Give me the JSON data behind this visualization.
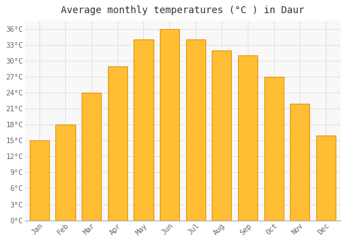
{
  "title": "Average monthly temperatures (°C ) in Daur",
  "months": [
    "Jan",
    "Feb",
    "Mar",
    "Apr",
    "May",
    "Jun",
    "Jul",
    "Aug",
    "Sep",
    "Oct",
    "Nov",
    "Dec"
  ],
  "values": [
    15,
    18,
    24,
    29,
    34,
    36,
    34,
    32,
    31,
    27,
    22,
    16
  ],
  "bar_color_face": "#FFBE33",
  "bar_color_edge": "#E5950A",
  "bar_color_left": "#F5A800",
  "bar_color_right": "#F5A800",
  "ylim": [
    0,
    37.5
  ],
  "yticks": [
    0,
    3,
    6,
    9,
    12,
    15,
    18,
    21,
    24,
    27,
    30,
    33,
    36
  ],
  "ytick_labels": [
    "0°C",
    "3°C",
    "6°C",
    "9°C",
    "12°C",
    "15°C",
    "18°C",
    "21°C",
    "24°C",
    "27°C",
    "30°C",
    "33°C",
    "36°C"
  ],
  "background_color": "#FFFFFF",
  "plot_bg_color": "#F8F8F8",
  "grid_color": "#E0E0E0",
  "title_fontsize": 10,
  "tick_fontsize": 7.5,
  "figsize": [
    5.0,
    3.5
  ],
  "dpi": 100,
  "bar_width": 0.75
}
